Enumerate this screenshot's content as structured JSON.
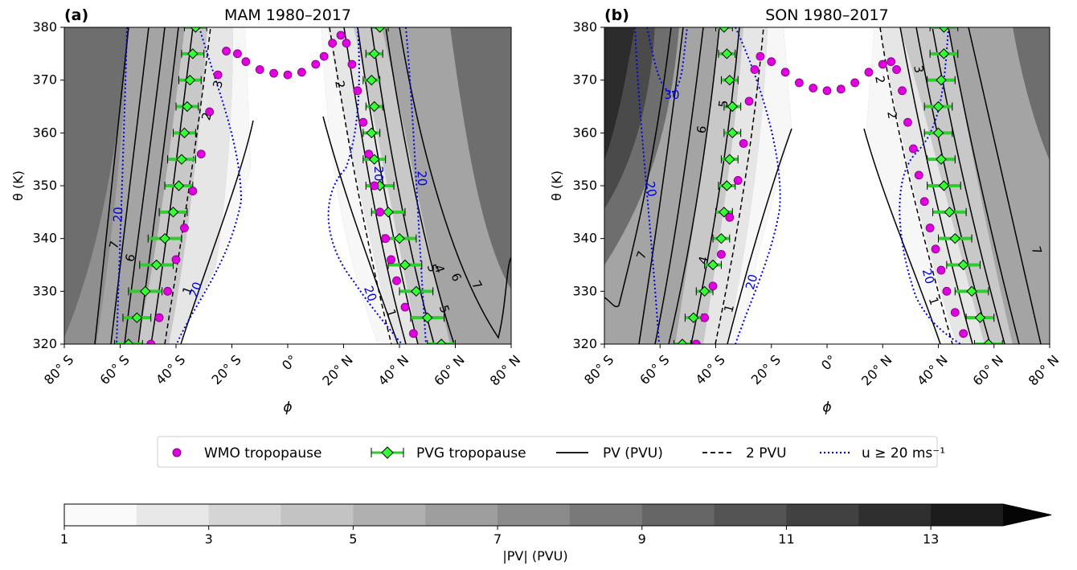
{
  "legend": {
    "items": [
      {
        "key": "wmo",
        "label": "WMO tropopause"
      },
      {
        "key": "pvg",
        "label": "PVG tropopause"
      },
      {
        "key": "pv",
        "label": "PV (PVU)"
      },
      {
        "key": "pv2",
        "label": "2 PVU"
      },
      {
        "key": "u20",
        "label": "u ≥ 20 ms⁻¹"
      }
    ]
  },
  "colorbar": {
    "label": "|PV| (PVU)",
    "ticks": [
      "1",
      "3",
      "5",
      "7",
      "9",
      "11",
      "13"
    ],
    "levels": [
      1,
      2,
      3,
      4,
      5,
      6,
      7,
      8,
      9,
      10,
      11,
      12,
      13,
      14
    ],
    "extend": "max"
  },
  "chart_data": [
    {
      "type": "contour",
      "panel_label": "(a)",
      "title": "MAM 1980–2017",
      "xlabel": "ϕ",
      "ylabel": "θ (K)",
      "xlim": [
        -80,
        80
      ],
      "ylim": [
        320,
        380
      ],
      "xticks": [
        -80,
        -60,
        -40,
        -20,
        0,
        20,
        40,
        60,
        80
      ],
      "xtick_labels": [
        "80° S",
        "60° S",
        "40° S",
        "20° S",
        "0°",
        "20° N",
        "40° N",
        "60° N",
        "80° N"
      ],
      "yticks": [
        320,
        330,
        340,
        350,
        360,
        370,
        380
      ],
      "ytick_labels": [
        "320",
        "330",
        "340",
        "350",
        "360",
        "370",
        "380"
      ],
      "wmo_tropopause": {
        "lat": [
          -49,
          -46,
          -43,
          -40,
          -37,
          -34,
          -31,
          -28,
          -25,
          -22,
          -18,
          -15,
          -10,
          -5,
          0,
          5,
          10,
          13,
          16,
          19,
          21,
          23,
          25,
          27,
          29,
          31,
          33,
          35,
          37,
          39,
          42,
          45,
          48
        ],
        "theta": [
          320,
          325,
          330,
          336,
          342,
          349,
          356,
          364,
          371,
          375.5,
          375,
          373.5,
          372,
          371.3,
          371,
          371.5,
          373,
          374.5,
          377,
          378.5,
          377,
          373,
          368,
          362,
          356,
          350,
          345,
          340,
          336,
          332,
          327,
          322,
          319
        ]
      },
      "pvg_tropopause": {
        "theta": [
          320,
          325,
          330,
          335,
          340,
          345,
          350,
          355,
          360,
          365,
          370,
          375,
          380
        ],
        "sh_lat": [
          -57,
          -54,
          -51,
          -47,
          -44,
          -41,
          -39,
          -38,
          -37,
          -36,
          -35,
          -34,
          -33
        ],
        "sh_err": [
          5,
          5,
          6,
          6,
          6,
          5,
          5,
          5,
          4,
          4,
          4,
          4,
          4
        ],
        "nh_lat": [
          55,
          50,
          46,
          42,
          40,
          36,
          33,
          31,
          30,
          31,
          30,
          31,
          33
        ],
        "nh_err": [
          5,
          6,
          6,
          6,
          6,
          6,
          5,
          4,
          3,
          3,
          3,
          3,
          3
        ]
      },
      "contour_labels_pv": [
        "7",
        "6",
        "1",
        "3",
        "2",
        "2",
        "1",
        "5",
        "4",
        "5",
        "6",
        "7"
      ],
      "contour_labels_u": [
        "20",
        "20",
        "20",
        "20",
        "20"
      ]
    },
    {
      "type": "contour",
      "panel_label": "(b)",
      "title": "SON 1980–2017",
      "xlabel": "ϕ",
      "ylabel": "θ (K)",
      "xlim": [
        -80,
        80
      ],
      "ylim": [
        320,
        380
      ],
      "xticks": [
        -80,
        -60,
        -40,
        -20,
        0,
        20,
        40,
        60,
        80
      ],
      "xtick_labels": [
        "80° S",
        "60° S",
        "40° S",
        "20° S",
        "0°",
        "20° N",
        "40° N",
        "60° N",
        "80° N"
      ],
      "yticks": [
        320,
        330,
        340,
        350,
        360,
        370,
        380
      ],
      "ytick_labels": [
        "320",
        "330",
        "340",
        "350",
        "360",
        "370",
        "380"
      ],
      "wmo_tropopause": {
        "lat": [
          -47,
          -44,
          -41,
          -38,
          -35,
          -32,
          -30,
          -28,
          -26,
          -24,
          -20,
          -15,
          -10,
          -5,
          0,
          5,
          10,
          15,
          20,
          23,
          25,
          27,
          29,
          31,
          33,
          35,
          37,
          39,
          41,
          43,
          46,
          49,
          52
        ],
        "theta": [
          320,
          325,
          331,
          337,
          344,
          351,
          358,
          366,
          372,
          374.5,
          373.5,
          371.5,
          369.5,
          368.5,
          368,
          368.3,
          369.5,
          371.5,
          373,
          373.5,
          372,
          368,
          362,
          357,
          352,
          347,
          342,
          338,
          334,
          330,
          326,
          322,
          319
        ]
      },
      "pvg_tropopause": {
        "theta": [
          320,
          325,
          330,
          335,
          340,
          345,
          350,
          355,
          360,
          365,
          370,
          375,
          380
        ],
        "sh_lat": [
          -52,
          -48,
          -44,
          -41,
          -38,
          -37,
          -36,
          -35,
          -34,
          -34,
          -35,
          -36,
          -37
        ],
        "sh_err": [
          3,
          3,
          3,
          3,
          3,
          3,
          3,
          3,
          3,
          3,
          3,
          3,
          3
        ],
        "nh_lat": [
          58,
          55,
          52,
          49,
          46,
          44,
          42,
          41,
          40,
          40,
          41,
          42,
          42
        ],
        "nh_err": [
          5,
          5,
          6,
          6,
          6,
          6,
          6,
          5,
          5,
          5,
          5,
          5,
          5
        ]
      },
      "contour_labels_pv": [
        "6",
        "7",
        "4",
        "5",
        "1",
        "2",
        "3",
        "2",
        "1",
        "7"
      ],
      "contour_labels_u": [
        "30",
        "20",
        "20",
        "20"
      ]
    }
  ]
}
